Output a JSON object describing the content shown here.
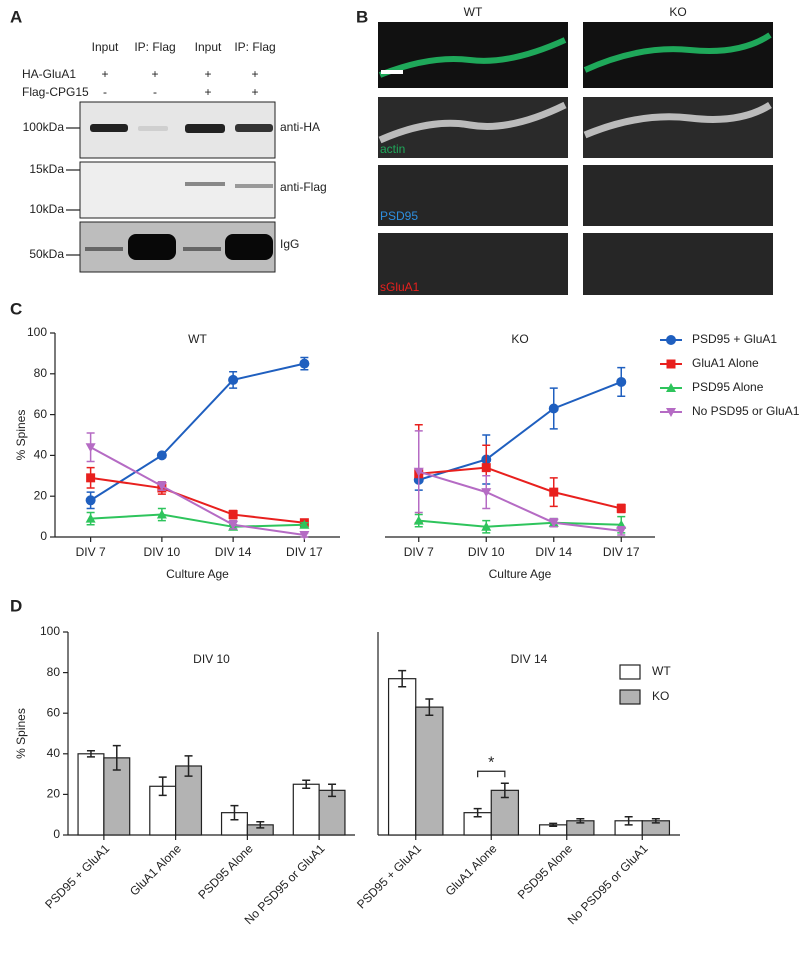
{
  "panel_a": {
    "label": "A",
    "columns": [
      "Input",
      "IP: Flag",
      "Input",
      "IP: Flag"
    ],
    "rows": [
      {
        "name": "HA-GluA1",
        "marks": [
          "+",
          "+",
          "+",
          "+"
        ]
      },
      {
        "name": "Flag-CPG15",
        "marks": [
          "-",
          "-",
          "+",
          "+"
        ]
      }
    ],
    "markers": [
      "100kDa",
      "15kDa",
      "10kDa",
      "50kDa"
    ],
    "antibodies": [
      "anti-HA",
      "anti-Flag",
      "IgG"
    ]
  },
  "panel_b": {
    "label": "B",
    "columns": [
      "WT",
      "KO"
    ],
    "channels": [
      "actin",
      "PSD95",
      "sGluA1"
    ]
  },
  "chart_data": [
    {
      "type": "line",
      "panel": "C",
      "title": "WT",
      "ylabel": "% Spines",
      "xlabel": "Culture Age",
      "categories": [
        "DIV 7",
        "DIV 10",
        "DIV 14",
        "DIV 17"
      ],
      "ylim": [
        0,
        100
      ],
      "yticks": [
        0,
        20,
        40,
        60,
        80,
        100
      ],
      "series": [
        {
          "name": "PSD95 + GluA1",
          "color": "#1f5fbf",
          "marker": "circle",
          "values": [
            18,
            40,
            77,
            85
          ],
          "errors": [
            4,
            1,
            4,
            3
          ]
        },
        {
          "name": "GluA1 Alone",
          "color": "#e8201e",
          "marker": "square",
          "values": [
            29,
            24,
            11,
            7
          ],
          "errors": [
            5,
            3,
            2,
            1
          ]
        },
        {
          "name": "PSD95 Alone",
          "color": "#2ec45c",
          "marker": "triangle",
          "values": [
            9,
            11,
            5,
            6
          ],
          "errors": [
            3,
            3,
            1,
            1
          ]
        },
        {
          "name": "No PSD95 or GluA1",
          "color": "#b56bc4",
          "marker": "triangle-down",
          "values": [
            44,
            25,
            6,
            1
          ],
          "errors": [
            7,
            2,
            2,
            1
          ]
        }
      ]
    },
    {
      "type": "line",
      "title": "KO",
      "xlabel": "Culture Age",
      "legend": "right",
      "categories": [
        "DIV 7",
        "DIV 10",
        "DIV 14",
        "DIV 17"
      ],
      "ylim": [
        0,
        100
      ],
      "series": [
        {
          "name": "PSD95 + GluA1",
          "color": "#1f5fbf",
          "marker": "circle",
          "values": [
            28,
            38,
            63,
            76
          ],
          "errors": [
            5,
            12,
            10,
            7
          ]
        },
        {
          "name": "GluA1 Alone",
          "color": "#e8201e",
          "marker": "square",
          "values": [
            31,
            34,
            22,
            14
          ],
          "errors": [
            24,
            11,
            7,
            2
          ]
        },
        {
          "name": "PSD95 Alone",
          "color": "#2ec45c",
          "marker": "triangle",
          "values": [
            8,
            5,
            7,
            6
          ],
          "errors": [
            3,
            3,
            2,
            4
          ]
        },
        {
          "name": "No PSD95 or GluA1",
          "color": "#b56bc4",
          "marker": "triangle-down",
          "values": [
            32,
            22,
            7,
            3
          ],
          "errors": [
            20,
            8,
            2,
            2
          ]
        }
      ]
    },
    {
      "type": "bar",
      "panel": "D",
      "title": "DIV 10",
      "ylabel": "% Spines",
      "categories": [
        "PSD95 + GluA1",
        "GluA1 Alone",
        "PSD95 Alone",
        "No PSD95 or GluA1"
      ],
      "ylim": [
        0,
        100
      ],
      "yticks": [
        0,
        20,
        40,
        60,
        80,
        100
      ],
      "series": [
        {
          "name": "WT",
          "color": "#ffffff",
          "values": [
            40,
            24,
            11,
            25
          ],
          "errors": [
            1.5,
            4.5,
            3.5,
            2
          ]
        },
        {
          "name": "KO",
          "color": "#b3b3b3",
          "values": [
            38,
            34,
            5,
            22
          ],
          "errors": [
            6,
            5,
            1.5,
            3
          ]
        }
      ]
    },
    {
      "type": "bar",
      "title": "DIV 14",
      "legend": "right",
      "categories": [
        "PSD95 + GluA1",
        "GluA1 Alone",
        "PSD95 Alone",
        "No PSD95 or GluA1"
      ],
      "ylim": [
        0,
        100
      ],
      "series": [
        {
          "name": "WT",
          "color": "#ffffff",
          "values": [
            77,
            11,
            5,
            7
          ],
          "errors": [
            4,
            2,
            0.7,
            2
          ]
        },
        {
          "name": "KO",
          "color": "#b3b3b3",
          "values": [
            63,
            22,
            7,
            7
          ],
          "errors": [
            4,
            3.5,
            1,
            1
          ]
        }
      ],
      "annotations": [
        {
          "text": "*",
          "category": "GluA1 Alone"
        }
      ]
    }
  ]
}
